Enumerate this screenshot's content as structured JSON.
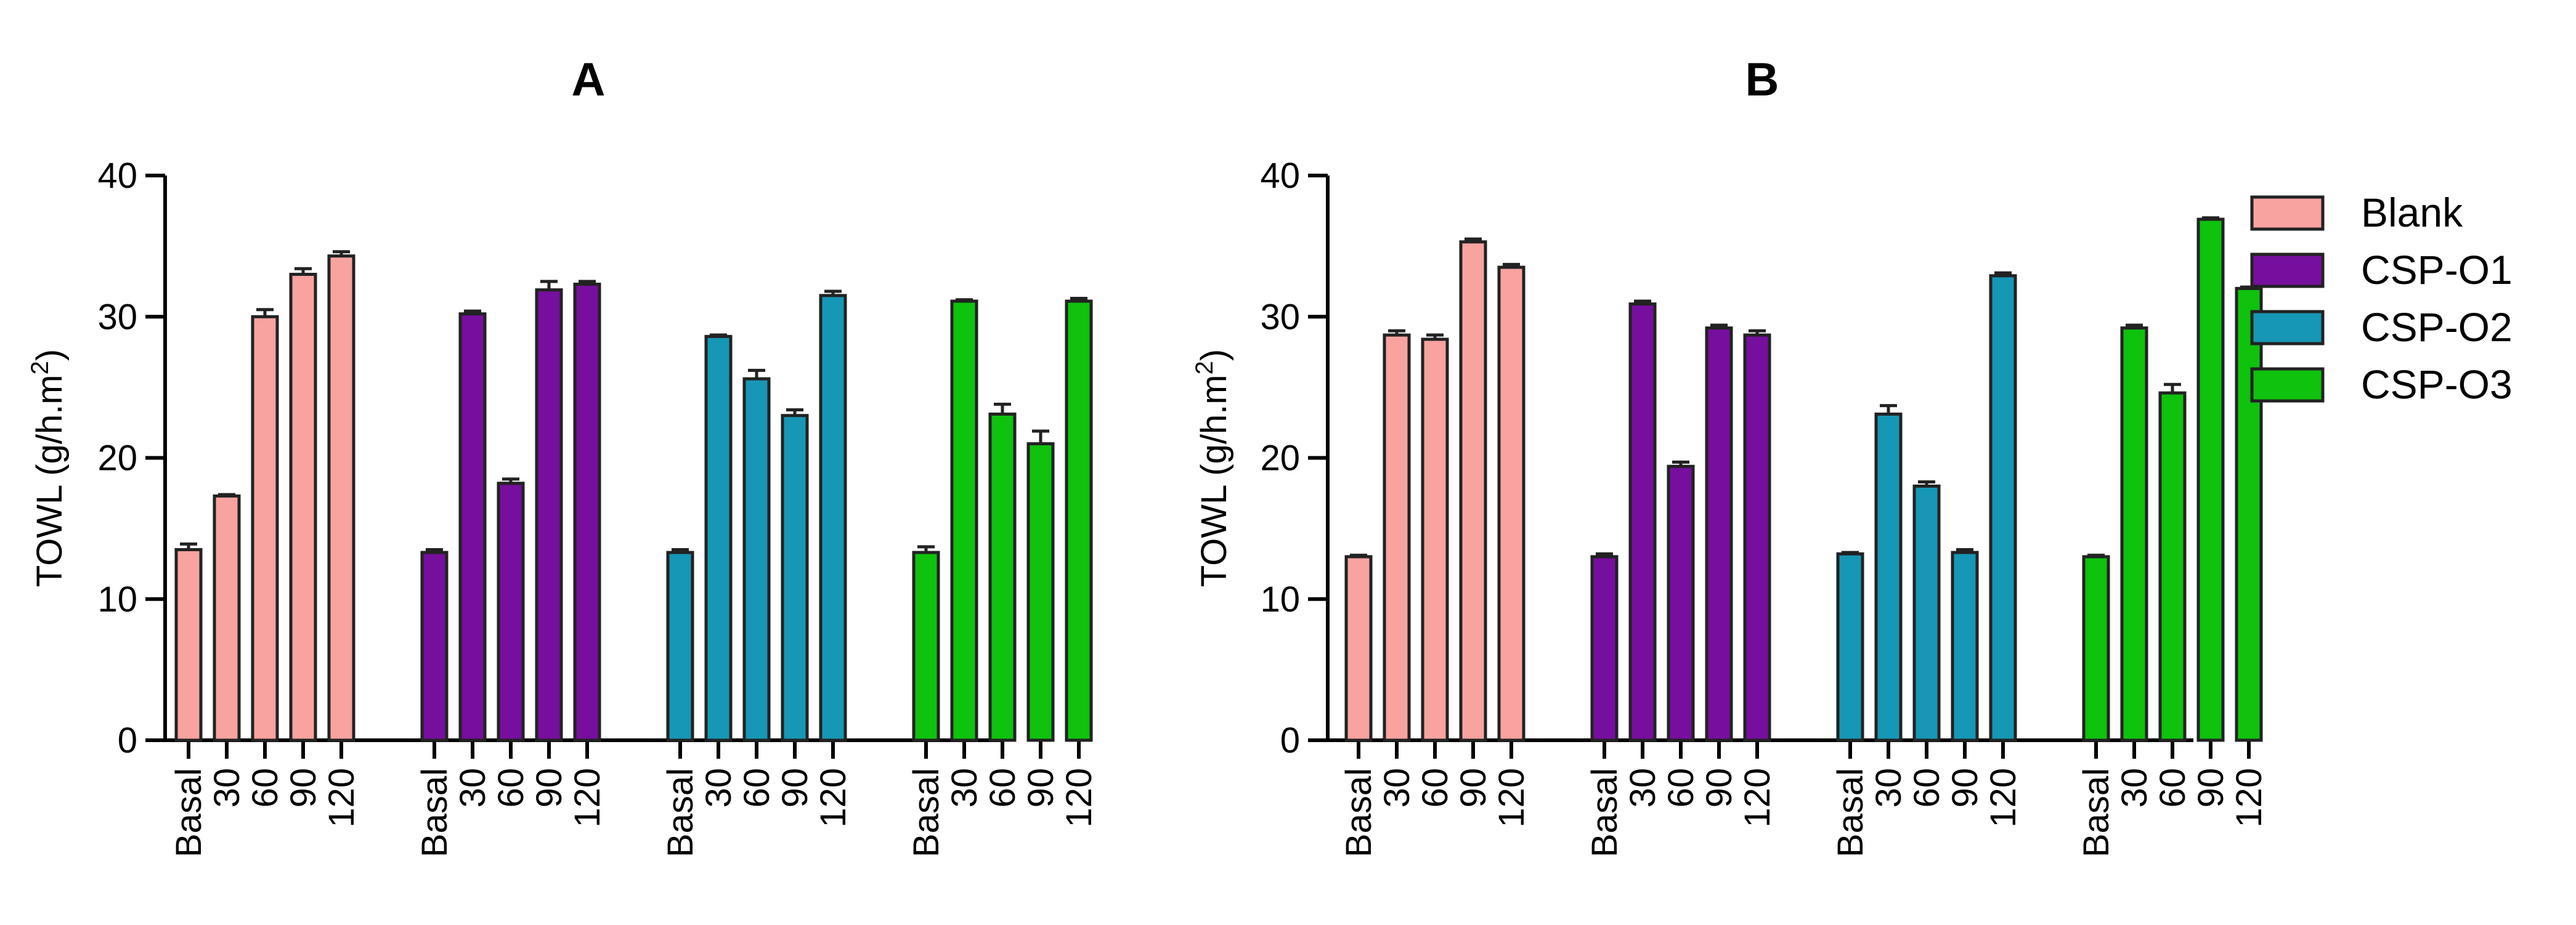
{
  "chart_data": [
    {
      "type": "bar",
      "title": "A",
      "ylabel": "TOWL (g/h.m",
      "ylabel_sup": "2",
      "ylabel_end": ")",
      "xlabel": "",
      "ylim": [
        0,
        40
      ],
      "yticks": [
        "0",
        "10",
        "20",
        "30",
        "40"
      ],
      "categories": [
        "Basal",
        "30",
        "60",
        "90",
        "120"
      ],
      "series": [
        {
          "name": "Blank",
          "color": "#f8a3a0",
          "values": [
            13.5,
            17.3,
            30.0,
            33.0,
            34.3
          ],
          "errors": [
            0.4,
            0.1,
            0.5,
            0.4,
            0.3
          ]
        },
        {
          "name": "CSP-O1",
          "color": "#760f9d",
          "values": [
            13.3,
            30.2,
            18.2,
            31.9,
            32.3
          ],
          "errors": [
            0.2,
            0.2,
            0.3,
            0.6,
            0.2
          ]
        },
        {
          "name": "CSP-O2",
          "color": "#1697b5",
          "values": [
            13.3,
            28.6,
            25.6,
            23.0,
            31.5
          ],
          "errors": [
            0.2,
            0.1,
            0.6,
            0.4,
            0.3
          ]
        },
        {
          "name": "CSP-O3",
          "color": "#0ec20e",
          "values": [
            13.3,
            31.1,
            23.1,
            21.0,
            31.1
          ],
          "errors": [
            0.4,
            0.1,
            0.7,
            0.9,
            0.2
          ]
        }
      ]
    },
    {
      "type": "bar",
      "title": "B",
      "ylabel": "TOWL (g/h.m",
      "ylabel_sup": "2",
      "ylabel_end": ")",
      "xlabel": "",
      "ylim": [
        0,
        40
      ],
      "yticks": [
        "0",
        "10",
        "20",
        "30",
        "40"
      ],
      "categories": [
        "Basal",
        "30",
        "60",
        "90",
        "120"
      ],
      "series": [
        {
          "name": "Blank",
          "color": "#f8a3a0",
          "values": [
            13.0,
            28.7,
            28.4,
            35.3,
            33.5
          ],
          "errors": [
            0.1,
            0.3,
            0.3,
            0.2,
            0.2
          ]
        },
        {
          "name": "CSP-O1",
          "color": "#760f9d",
          "values": [
            13.0,
            30.9,
            19.4,
            29.2,
            28.7
          ],
          "errors": [
            0.2,
            0.2,
            0.3,
            0.2,
            0.3
          ]
        },
        {
          "name": "CSP-O2",
          "color": "#1697b5",
          "values": [
            13.2,
            23.1,
            18.0,
            13.3,
            32.9
          ],
          "errors": [
            0.1,
            0.6,
            0.3,
            0.2,
            0.2
          ]
        },
        {
          "name": "CSP-O3",
          "color": "#0ec20e",
          "values": [
            13.0,
            29.2,
            24.6,
            36.9,
            32.0
          ],
          "errors": [
            0.1,
            0.2,
            0.6,
            0.1,
            0.1
          ]
        }
      ]
    }
  ],
  "legend": {
    "placement": "right",
    "items": [
      {
        "label": "Blank",
        "color": "#f8a3a0"
      },
      {
        "label": "CSP-O1",
        "color": "#760f9d"
      },
      {
        "label": "CSP-O2",
        "color": "#1697b5"
      },
      {
        "label": "CSP-O3",
        "color": "#0ec20e"
      }
    ]
  }
}
